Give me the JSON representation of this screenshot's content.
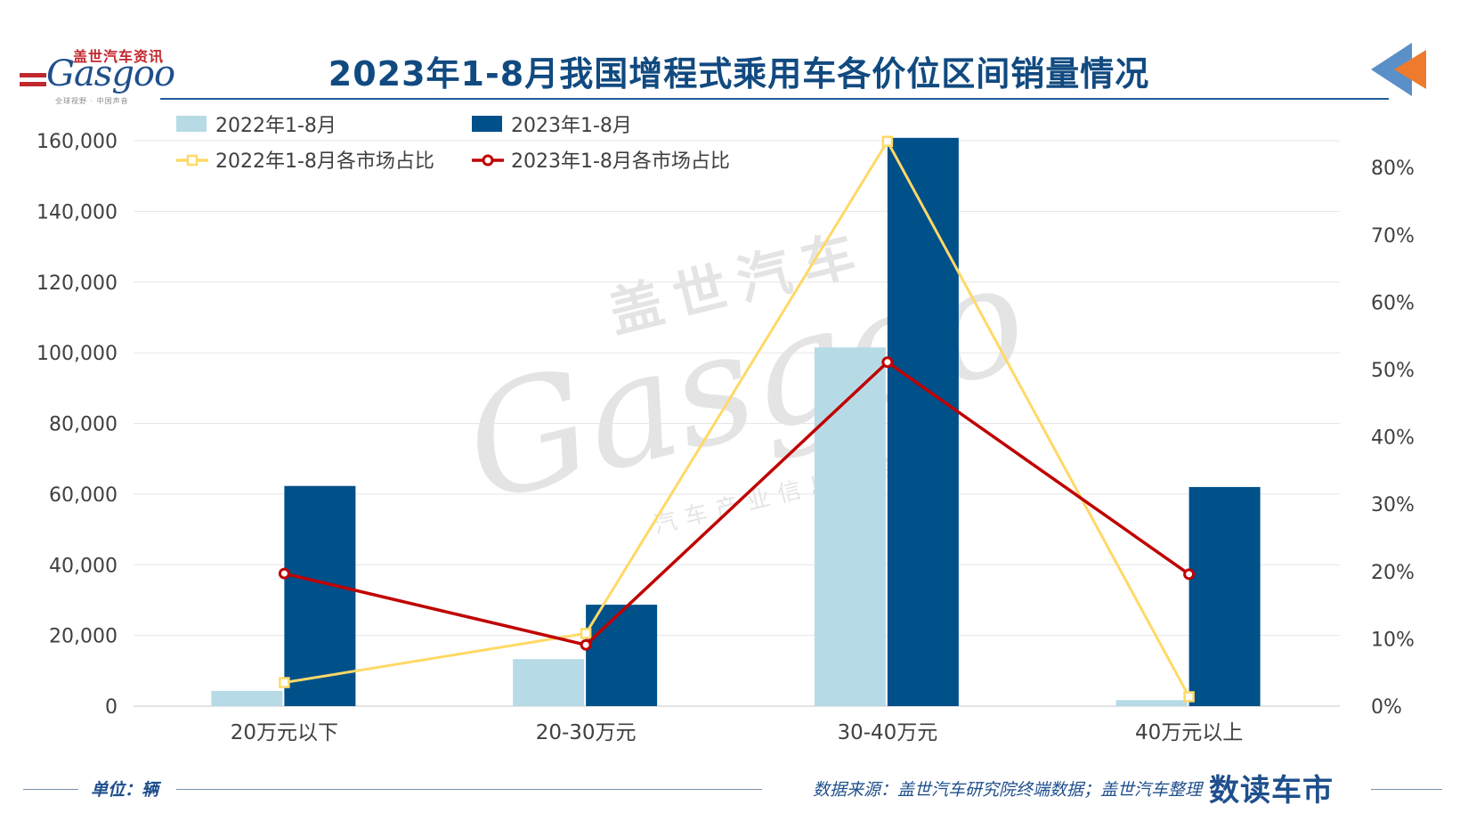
{
  "header": {
    "logo_text_cn": "盖世汽车资讯",
    "logo_text_en": "Gasgoo",
    "logo_tagline": "全球视野 · 中国声音",
    "title": "2023年1-8月我国增程式乘用车各价位区间销量情况"
  },
  "watermark": {
    "cn": "盖世汽车",
    "en": "Gasgoo",
    "sub": "汽车产业信息服务"
  },
  "footer": {
    "unit": "单位：辆",
    "source": "数据来源：盖世汽车研究院终端数据；盖世汽车整理",
    "brand": "数读车市"
  },
  "colors": {
    "bar_2022": "#b7dbe6",
    "bar_2023": "#00508a",
    "line_2022": "#ffd966",
    "line_2023": "#c00000",
    "title": "#114a80"
  },
  "chart_data": {
    "type": "bar",
    "categories": [
      "20万元以下",
      "20-30万元",
      "30-40万元",
      "40万元以上"
    ],
    "series": [
      {
        "name": "2022年1-8月",
        "type": "bar",
        "axis": "left",
        "values": [
          4300,
          13300,
          101500,
          1700
        ]
      },
      {
        "name": "2023年1-8月",
        "type": "bar",
        "axis": "left",
        "values": [
          62300,
          28700,
          160800,
          62000
        ]
      },
      {
        "name": "2022年1-8月各市场占比",
        "type": "line",
        "axis": "right",
        "values": [
          3.5,
          10.8,
          83.9,
          1.4
        ]
      },
      {
        "name": "2023年1-8月各市场占比",
        "type": "line",
        "axis": "right",
        "values": [
          19.7,
          9.1,
          51.1,
          19.6
        ]
      }
    ],
    "y_left": {
      "ylim": [
        0,
        160000
      ],
      "ticks": [
        "0",
        "20,000",
        "40,000",
        "60,000",
        "80,000",
        "100,000",
        "120,000",
        "140,000",
        "160,000"
      ]
    },
    "y_right": {
      "ylim": [
        0,
        84
      ],
      "ticks": [
        "0%",
        "10%",
        "20%",
        "30%",
        "40%",
        "50%",
        "60%",
        "70%",
        "80%"
      ]
    },
    "grid": true,
    "legend": "top-left"
  }
}
